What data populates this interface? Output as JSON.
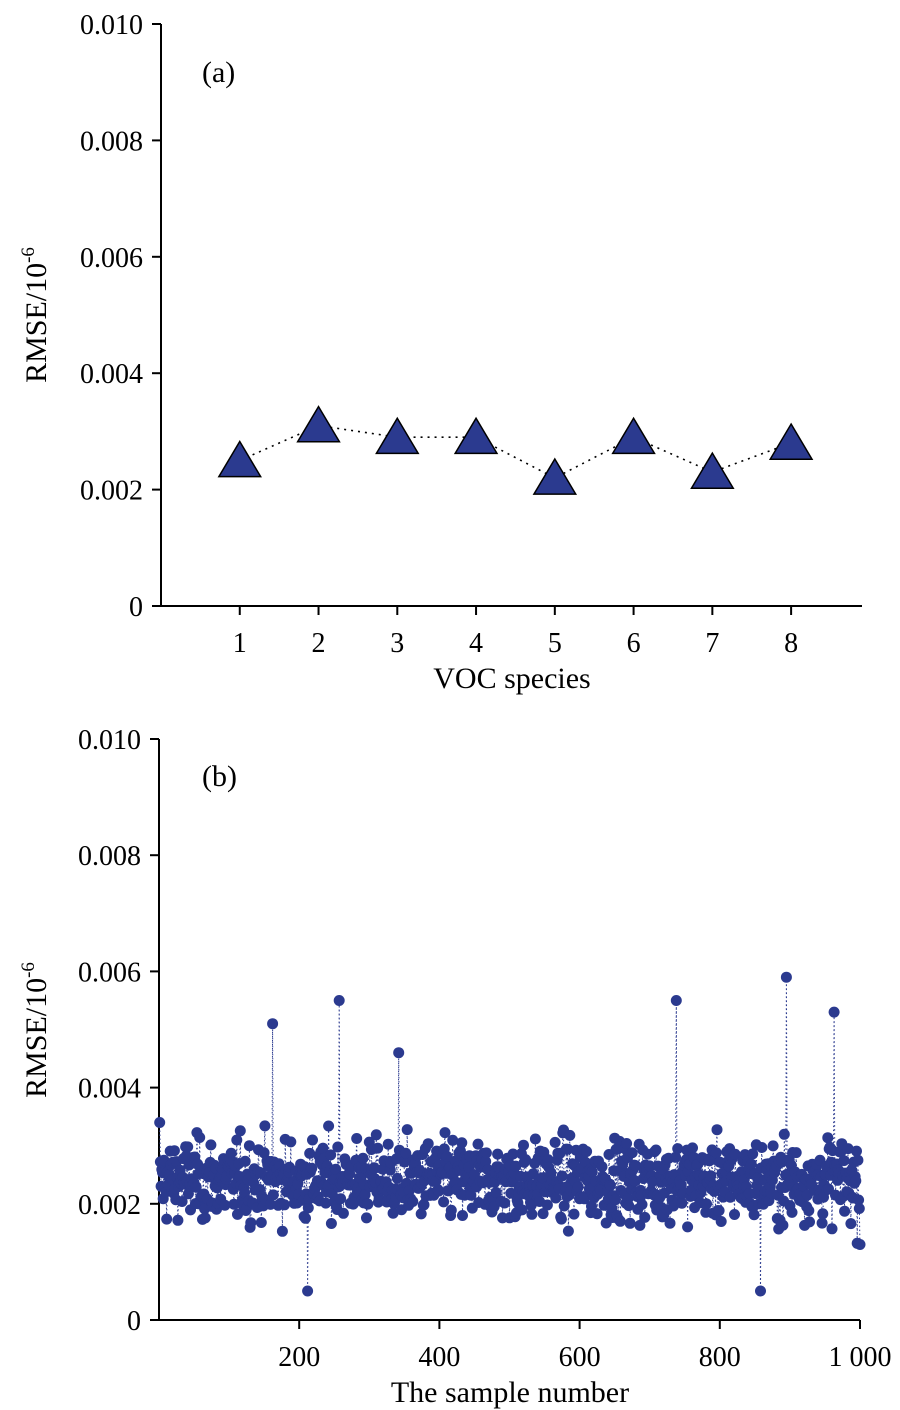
{
  "chart_data": [
    {
      "id": "a",
      "type": "line",
      "panel_label": "(a)",
      "xlabel": "VOC species",
      "ylabel": "RMSE/10",
      "ylabel_exp": "-6",
      "ylim": [
        0,
        0.01
      ],
      "yticks": [
        "0",
        "0.002",
        "0.004",
        "0.006",
        "0.008",
        "0.010"
      ],
      "x": [
        1,
        2,
        3,
        4,
        5,
        6,
        7,
        8
      ],
      "xticks": [
        "1",
        "2",
        "3",
        "4",
        "5",
        "6",
        "7",
        "8"
      ],
      "xlim": [
        0.0,
        8.9
      ],
      "values": [
        0.0025,
        0.0031,
        0.0029,
        0.0029,
        0.0022,
        0.0029,
        0.0023,
        0.0028
      ],
      "marker": "triangle",
      "color": "#2b3a8f",
      "line_style": "dotted",
      "grid": false
    },
    {
      "id": "b",
      "type": "scatter",
      "panel_label": "(b)",
      "xlabel": "The sample number",
      "ylabel": "RMSE/10",
      "ylabel_exp": "-6",
      "ylim": [
        0,
        0.01
      ],
      "yticks": [
        "0",
        "0.002",
        "0.004",
        "0.006",
        "0.008",
        "0.010"
      ],
      "xlim": [
        0,
        1000
      ],
      "xtick_values": [
        200,
        400,
        600,
        800,
        1000
      ],
      "xticks": [
        "200",
        "400",
        "600",
        "800",
        "1 000"
      ],
      "n_samples": 1000,
      "value_mean": 0.0024,
      "value_spread": [
        0.0005,
        0.0059
      ],
      "highlights": [
        {
          "x": 1,
          "y": 0.0034
        },
        {
          "x": 162,
          "y": 0.0051
        },
        {
          "x": 212,
          "y": 0.0005
        },
        {
          "x": 257,
          "y": 0.0055
        },
        {
          "x": 342,
          "y": 0.0046
        },
        {
          "x": 738,
          "y": 0.0055
        },
        {
          "x": 858,
          "y": 0.0005
        },
        {
          "x": 895,
          "y": 0.0059
        },
        {
          "x": 963,
          "y": 0.0053
        },
        {
          "x": 1000,
          "y": 0.0013
        }
      ],
      "marker": "circle",
      "color": "#2b3a8f",
      "line_style": "dotted",
      "grid": false
    }
  ]
}
